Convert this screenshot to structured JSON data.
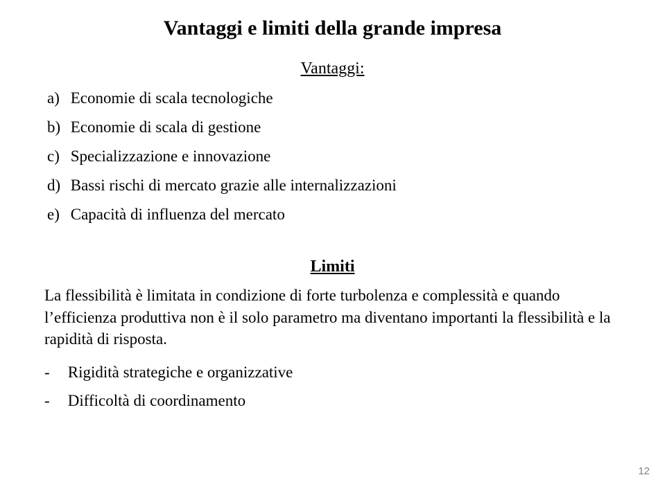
{
  "title": "Vantaggi e limiti della grande impresa",
  "vantaggi_heading": "Vantaggi:",
  "vantaggi_items": {
    "a": {
      "marker": "a)",
      "text": "Economie di scala tecnologiche"
    },
    "b": {
      "marker": "b)",
      "text": "Economie di scala di gestione"
    },
    "c": {
      "marker": "c)",
      "text": "Specializzazione e innovazione"
    },
    "d": {
      "marker": "d)",
      "text": "Bassi rischi di mercato grazie alle internalizzazioni"
    },
    "e": {
      "marker": "e)",
      "text": "Capacità di influenza del mercato"
    }
  },
  "limiti_heading": "Limiti",
  "limiti_paragraph": "La flessibilità è limitata in condizione di forte turbolenza e complessità e quando l’efficienza produttiva non è il solo parametro ma diventano importanti la flessibilità e la rapidità di risposta.",
  "limiti_items": {
    "0": {
      "marker": "-",
      "text": "Rigidità strategiche e organizzative"
    },
    "1": {
      "marker": "-",
      "text": "Difficoltà di coordinamento"
    }
  },
  "page_number": "12",
  "colors": {
    "background": "#ffffff",
    "text": "#000000",
    "pagenum": "#7f7f7f"
  },
  "typography": {
    "family": "Times New Roman",
    "title_size_pt": 30,
    "subhead_size_pt": 24,
    "body_size_pt": 23,
    "pagenum_family": "Arial",
    "pagenum_size_pt": 15
  }
}
